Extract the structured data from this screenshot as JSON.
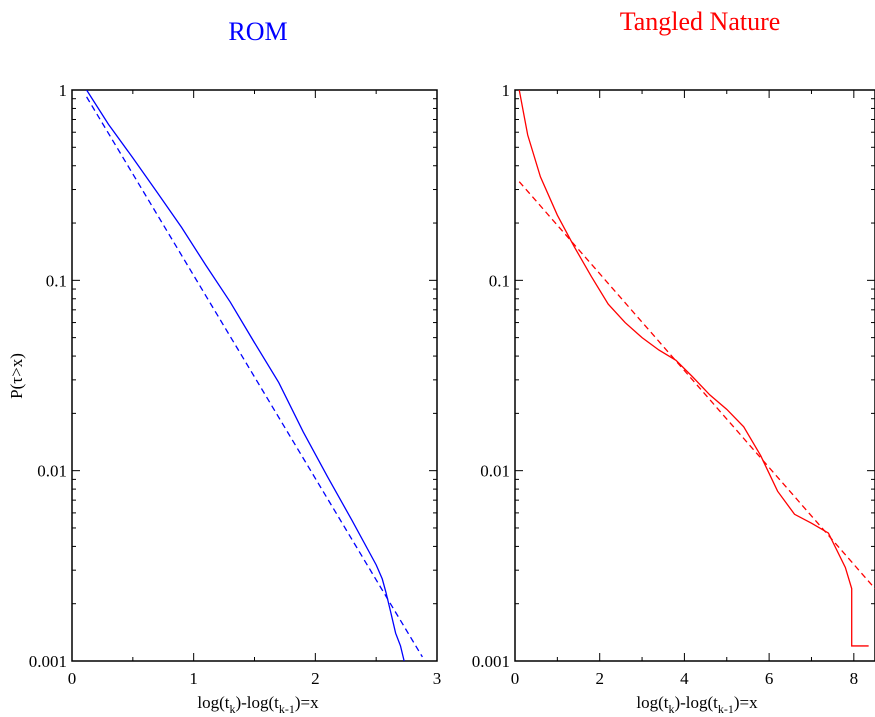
{
  "chart_data": [
    {
      "type": "line",
      "title": "ROM",
      "title_color": "#0000ff",
      "ylabel": "P(τ>x)",
      "xlabel": {
        "main": "log(t",
        "sub1": "k",
        "mid": ")-log(t",
        "sub2": "k-1",
        "end": ")=x"
      },
      "yscale": "log",
      "xlim": [
        0,
        3
      ],
      "ylim": [
        0.001,
        1
      ],
      "grid": false,
      "x_ticks": [
        "0",
        "1",
        "2",
        "3"
      ],
      "y_ticks": [
        "0.001",
        "0.01",
        "0.1",
        "1"
      ],
      "series": [
        {
          "style": "solid",
          "color": "#0000ff",
          "x": [
            0.12,
            0.3,
            0.5,
            0.7,
            0.9,
            1.1,
            1.3,
            1.5,
            1.7,
            1.9,
            2.1,
            2.3,
            2.5,
            2.55,
            2.58,
            2.62,
            2.66,
            2.7,
            2.73
          ],
          "y": [
            1.0,
            0.66,
            0.44,
            0.29,
            0.19,
            0.12,
            0.077,
            0.047,
            0.029,
            0.016,
            0.0093,
            0.0055,
            0.0032,
            0.0027,
            0.0023,
            0.0018,
            0.0014,
            0.0012,
            0.001
          ]
        },
        {
          "style": "dashed",
          "color": "#0000ff",
          "x": [
            0.12,
            2.88
          ],
          "y": [
            0.92,
            0.00105
          ]
        }
      ]
    },
    {
      "type": "line",
      "title": "Tangled Nature",
      "title_color": "#ff0000",
      "ylabel": "",
      "xlabel": {
        "main": "log(t",
        "sub1": "k",
        "mid": ")-log(t",
        "sub2": "k-1",
        "end": ")=x"
      },
      "yscale": "log",
      "xlim": [
        0,
        8.5
      ],
      "ylim": [
        0.001,
        1
      ],
      "grid": false,
      "x_ticks": [
        "0",
        "2",
        "4",
        "6",
        "8"
      ],
      "y_ticks": [
        "0.001",
        "0.01",
        "0.1",
        "1"
      ],
      "series": [
        {
          "style": "solid",
          "color": "#ff0000",
          "x": [
            0.1,
            0.3,
            0.6,
            1.0,
            1.4,
            1.8,
            2.2,
            2.6,
            3.0,
            3.4,
            3.8,
            4.2,
            4.6,
            5.0,
            5.4,
            5.8,
            6.2,
            6.6,
            7.0,
            7.4,
            7.8,
            7.95,
            7.95,
            8.35
          ],
          "y": [
            1.0,
            0.58,
            0.35,
            0.22,
            0.15,
            0.105,
            0.075,
            0.06,
            0.05,
            0.043,
            0.038,
            0.031,
            0.025,
            0.021,
            0.017,
            0.012,
            0.0078,
            0.0059,
            0.0053,
            0.0047,
            0.0031,
            0.0024,
            0.0012,
            0.0012
          ]
        },
        {
          "style": "dashed",
          "color": "#ff0000",
          "x": [
            0.1,
            8.5
          ],
          "y": [
            0.33,
            0.0024
          ]
        }
      ]
    }
  ]
}
